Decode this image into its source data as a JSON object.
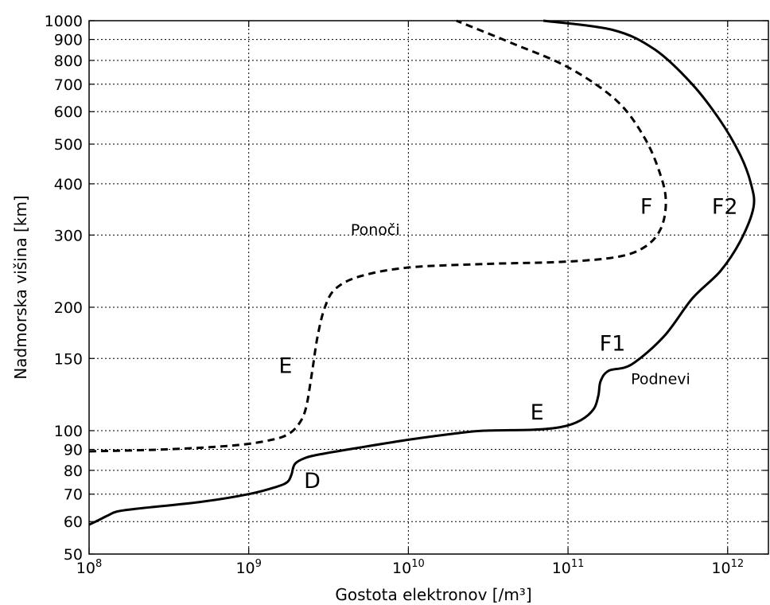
{
  "chart_data": {
    "type": "line",
    "xlabel": "Gostota elektronov [/m³]",
    "ylabel": "Nadmorska višina [km]",
    "x_scale": "log",
    "y_scale": "log",
    "xlim": [
      100000000.0,
      1800000000000.0
    ],
    "ylim": [
      50,
      1000
    ],
    "grid": true,
    "x_ticks": [
      {
        "value": 100000000.0,
        "base": "10",
        "exp": "8"
      },
      {
        "value": 1000000000.0,
        "base": "10",
        "exp": "9"
      },
      {
        "value": 10000000000.0,
        "base": "10",
        "exp": "10"
      },
      {
        "value": 100000000000.0,
        "base": "10",
        "exp": "11"
      },
      {
        "value": 1000000000000.0,
        "base": "10",
        "exp": "12"
      }
    ],
    "y_ticks": [
      50,
      60,
      70,
      80,
      90,
      100,
      150,
      200,
      300,
      400,
      500,
      600,
      700,
      800,
      900,
      1000
    ],
    "series": [
      {
        "name": "Podnevi",
        "style": "solid",
        "points": [
          [
            100000000.0,
            59
          ],
          [
            110000000.0,
            60
          ],
          [
            130000000.0,
            62
          ],
          [
            150000000.0,
            63.5
          ],
          [
            200000000.0,
            64.5
          ],
          [
            500000000.0,
            67
          ],
          [
            1000000000.0,
            70
          ],
          [
            1500000000.0,
            73
          ],
          [
            1750000000.0,
            75
          ],
          [
            1850000000.0,
            78
          ],
          [
            1950000000.0,
            83
          ],
          [
            2300000000.0,
            86
          ],
          [
            3000000000.0,
            88
          ],
          [
            5000000000.0,
            91
          ],
          [
            10000000000.0,
            95
          ],
          [
            20000000000.0,
            98.5
          ],
          [
            30000000000.0,
            100
          ],
          [
            60000000000.0,
            100.5
          ],
          [
            90000000000.0,
            102
          ],
          [
            120000000000.0,
            106
          ],
          [
            145000000000.0,
            113
          ],
          [
            155000000000.0,
            122
          ],
          [
            160000000000.0,
            132
          ],
          [
            180000000000.0,
            140
          ],
          [
            250000000000.0,
            145
          ],
          [
            400000000000.0,
            170
          ],
          [
            600000000000.0,
            210
          ],
          [
            900000000000.0,
            245
          ],
          [
            1200000000000.0,
            290
          ],
          [
            1450000000000.0,
            350
          ],
          [
            1400000000000.0,
            400
          ],
          [
            1200000000000.0,
            470
          ],
          [
            900000000000.0,
            570
          ],
          [
            600000000000.0,
            700
          ],
          [
            350000000000.0,
            850
          ],
          [
            190000000000.0,
            950
          ],
          [
            70000000000.0,
            1000
          ]
        ]
      },
      {
        "name": "Ponoči",
        "style": "dashed",
        "points": [
          [
            100000000.0,
            89
          ],
          [
            300000000.0,
            90
          ],
          [
            800000000.0,
            92
          ],
          [
            1400000000.0,
            95
          ],
          [
            1800000000.0,
            98.5
          ],
          [
            2100000000.0,
            105
          ],
          [
            2300000000.0,
            115
          ],
          [
            2500000000.0,
            140
          ],
          [
            2700000000.0,
            170
          ],
          [
            3000000000.0,
            200
          ],
          [
            3500000000.0,
            222
          ],
          [
            5000000000.0,
            238
          ],
          [
            10000000000.0,
            250
          ],
          [
            30000000000.0,
            255
          ],
          [
            90000000000.0,
            258
          ],
          [
            200000000000.0,
            265
          ],
          [
            300000000000.0,
            280
          ],
          [
            380000000000.0,
            310
          ],
          [
            410000000000.0,
            360
          ],
          [
            380000000000.0,
            420
          ],
          [
            300000000000.0,
            520
          ],
          [
            200000000000.0,
            640
          ],
          [
            100000000000.0,
            770
          ],
          [
            45000000000.0,
            880
          ],
          [
            20000000000.0,
            1000
          ]
        ]
      }
    ],
    "annotations": [
      {
        "text": "Ponoči",
        "x": 6200000000.0,
        "y": 308,
        "size": "small"
      },
      {
        "text": "Podnevi",
        "x": 380000000000.0,
        "y": 133,
        "size": "small"
      },
      {
        "text": "F",
        "x": 310000000000.0,
        "y": 350,
        "size": "large"
      },
      {
        "text": "F2",
        "x": 960000000000.0,
        "y": 350,
        "size": "large"
      },
      {
        "text": "F1",
        "x": 190000000000.0,
        "y": 162,
        "size": "large"
      },
      {
        "text": "E",
        "x": 1700000000.0,
        "y": 143,
        "size": "large"
      },
      {
        "text": "E",
        "x": 64000000000.0,
        "y": 110,
        "size": "large"
      },
      {
        "text": "D",
        "x": 2500000000.0,
        "y": 75,
        "size": "large"
      }
    ]
  }
}
